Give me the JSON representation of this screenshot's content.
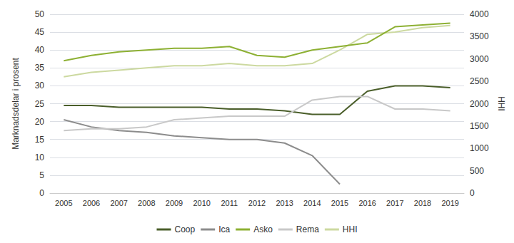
{
  "chart_data": {
    "type": "line",
    "categories": [
      "2005",
      "2006",
      "2007",
      "2008",
      "2009",
      "2010",
      "2011",
      "2012",
      "2013",
      "2014",
      "2015",
      "2016",
      "2017",
      "2018",
      "2019"
    ],
    "series": [
      {
        "name": "Coop",
        "color": "#4a5e2a",
        "values": [
          24.5,
          24.5,
          24.0,
          24.0,
          24.0,
          24.0,
          23.5,
          23.5,
          23.0,
          22.0,
          22.0,
          28.5,
          30.0,
          30.0,
          29.5
        ]
      },
      {
        "name": "Ica",
        "color": "#8c8c8c",
        "values": [
          20.5,
          18.5,
          17.5,
          17.0,
          16.0,
          15.5,
          15.0,
          15.0,
          14.0,
          10.5,
          2.5,
          null,
          null,
          null,
          null
        ]
      },
      {
        "name": "Asko",
        "color": "#8db033",
        "values": [
          37.0,
          38.5,
          39.5,
          40.0,
          40.5,
          40.5,
          41.0,
          38.5,
          38.0,
          40.0,
          41.0,
          42.0,
          46.5,
          47.0,
          47.5
        ]
      },
      {
        "name": "Rema",
        "color": "#c8c8c8",
        "values": [
          17.5,
          18.0,
          18.0,
          18.5,
          20.5,
          21.0,
          21.5,
          21.5,
          21.5,
          26.0,
          27.0,
          27.0,
          23.5,
          23.5,
          23.0
        ]
      },
      {
        "name": "HHI",
        "color": "#ccd9a0",
        "axis": "y2",
        "values": [
          2600,
          2700,
          2750,
          2800,
          2850,
          2850,
          2900,
          2850,
          2850,
          2900,
          3200,
          3550,
          3600,
          3700,
          3750
        ]
      }
    ],
    "ylabel": "Marknadsdelar i prosent",
    "y2label": "HHI",
    "ylim": [
      0,
      50
    ],
    "yticks": [
      0,
      5,
      10,
      15,
      20,
      25,
      30,
      35,
      40,
      45,
      50
    ],
    "y2lim": [
      0,
      4000
    ],
    "y2ticks": [
      0,
      500,
      1000,
      1500,
      2000,
      2500,
      3000,
      3500,
      4000
    ],
    "grid": true,
    "legend": "bottom"
  }
}
